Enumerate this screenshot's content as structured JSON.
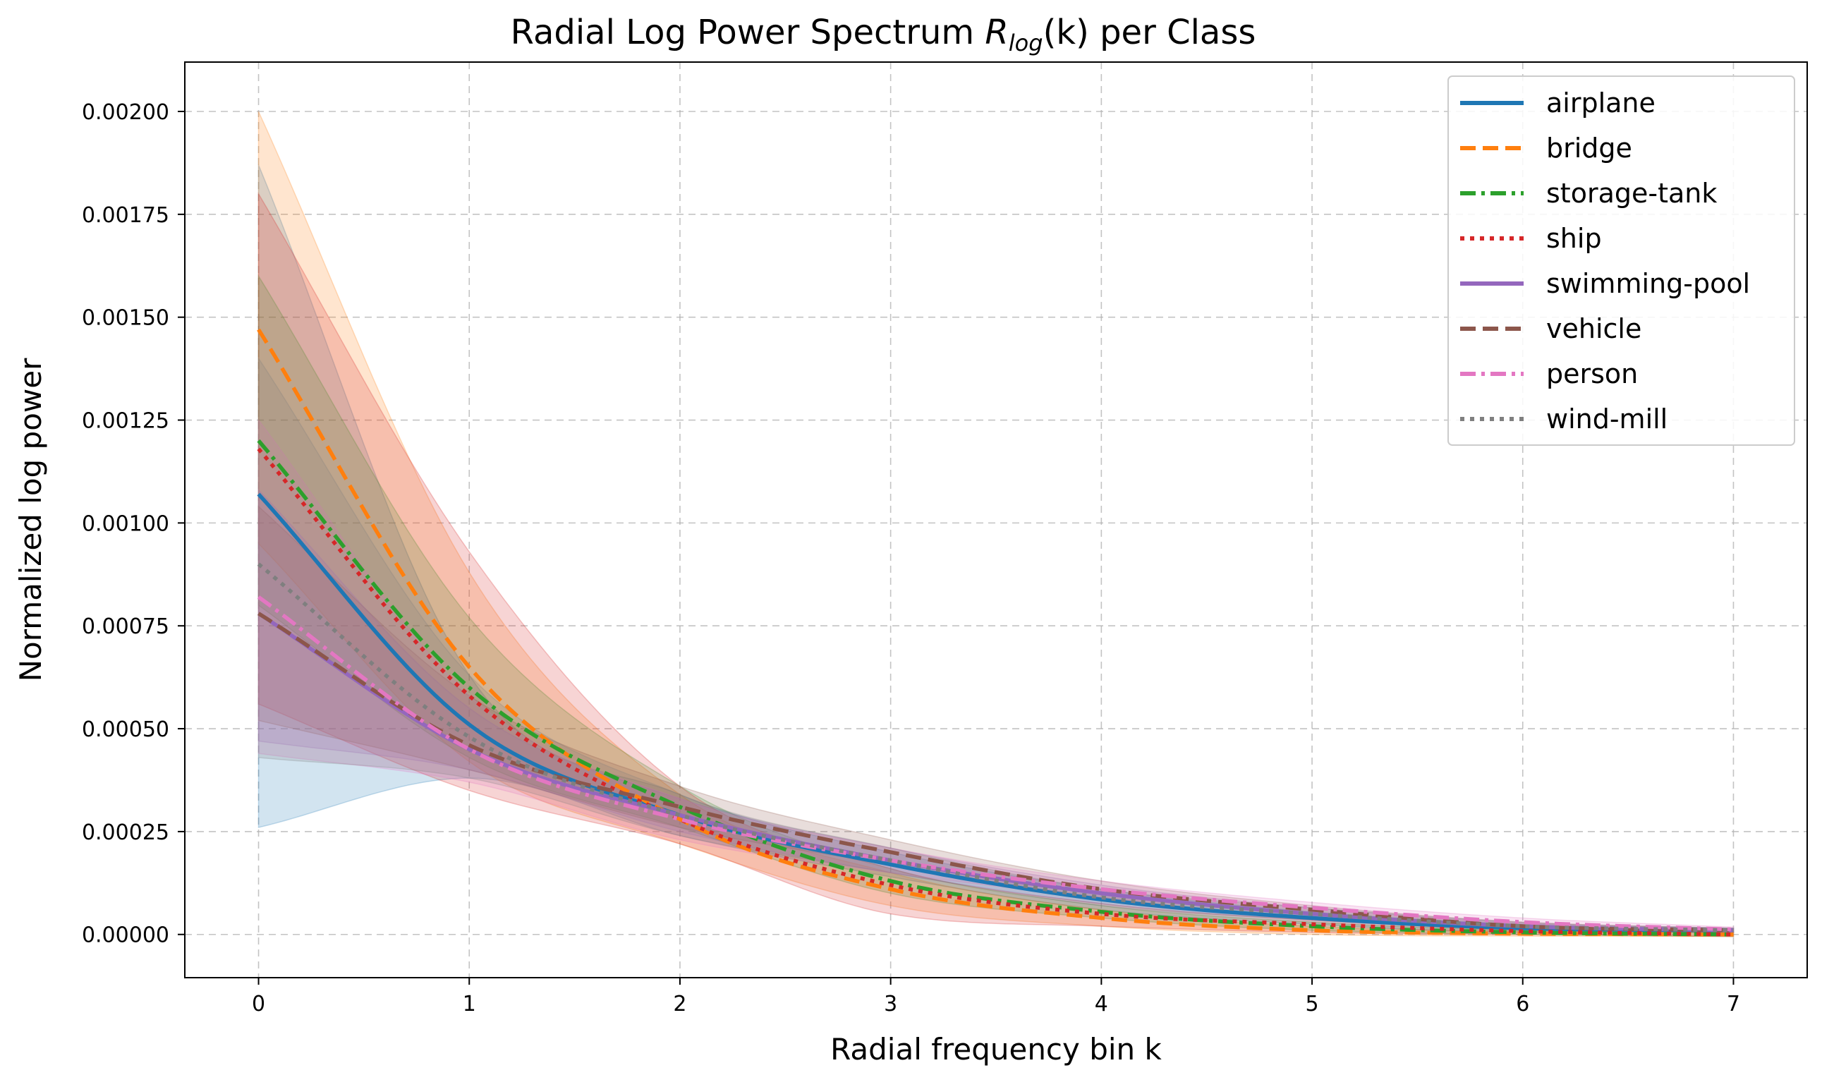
{
  "chart_data": {
    "type": "line",
    "title": "Radial Log Power Spectrum",
    "title_symbol": "R",
    "title_subscript": "log",
    "title_arg": "(k)",
    "title_suffix": " per Class",
    "xlabel": "Radial frequency bin k",
    "ylabel": "Normalized log power",
    "xlim": [
      -0.35,
      7.35
    ],
    "ylim": [
      -0.000105,
      0.00212
    ],
    "xticks": [
      0,
      1,
      2,
      3,
      4,
      5,
      6,
      7
    ],
    "xtick_labels": [
      "0",
      "1",
      "2",
      "3",
      "4",
      "5",
      "6",
      "7"
    ],
    "yticks": [
      0,
      0.00025,
      0.0005,
      0.00075,
      0.001,
      0.00125,
      0.0015,
      0.00175,
      0.002
    ],
    "ytick_labels": [
      "0.00000",
      "0.00025",
      "0.00050",
      "0.00075",
      "0.00100",
      "0.00125",
      "0.00150",
      "0.00175",
      "0.00200"
    ],
    "grid": true,
    "legend_position": "top-right",
    "x": [
      0,
      1,
      2,
      3,
      4,
      5,
      6,
      7
    ],
    "series": [
      {
        "name": "airplane",
        "color": "#1f77b4",
        "dash": "solid",
        "values": [
          0.00107,
          0.00051,
          0.00029,
          0.00017,
          8.5e-05,
          4e-05,
          1.5e-05,
          1e-05
        ],
        "upper": [
          0.00187,
          0.00063,
          0.00034,
          0.0002,
          0.00011,
          5.5e-05,
          2.5e-05,
          1.5e-05
        ],
        "lower": [
          0.00026,
          0.00038,
          0.00024,
          0.00014,
          6e-05,
          2.5e-05,
          5e-06,
          5e-06
        ]
      },
      {
        "name": "bridge",
        "color": "#ff7f0e",
        "dash": "dashed",
        "values": [
          0.00147,
          0.00065,
          0.00028,
          0.00011,
          4e-05,
          1e-05,
          2e-06,
          0.0
        ],
        "upper": [
          0.002,
          0.00088,
          0.00034,
          0.00015,
          6e-05,
          2e-05,
          8e-06,
          5e-06
        ],
        "lower": [
          0.00095,
          0.00042,
          0.00022,
          7e-05,
          2e-05,
          0.0,
          -4e-06,
          -5e-06
        ]
      },
      {
        "name": "storage-tank",
        "color": "#2ca02c",
        "dash": "dashdot",
        "values": [
          0.0012,
          0.0006,
          0.00031,
          0.00013,
          5.5e-05,
          2e-05,
          5e-06,
          0.0
        ],
        "upper": [
          0.0016,
          0.00077,
          0.00036,
          0.00016,
          7e-05,
          3e-05,
          1e-05,
          5e-06
        ],
        "lower": [
          0.0008,
          0.00043,
          0.00026,
          0.0001,
          4e-05,
          1e-05,
          0.0,
          -5e-06
        ]
      },
      {
        "name": "ship",
        "color": "#d62728",
        "dash": "dotted",
        "values": [
          0.00118,
          0.00058,
          0.00028,
          0.00012,
          5e-05,
          2.5e-05,
          8e-06,
          0.0
        ],
        "upper": [
          0.0018,
          0.00093,
          0.00036,
          0.00016,
          7.5e-05,
          3.5e-05,
          1.5e-05,
          5e-06
        ],
        "lower": [
          0.00056,
          0.00035,
          0.00022,
          5e-05,
          2e-05,
          5e-06,
          0.0,
          -5e-06
        ]
      },
      {
        "name": "swimming-pool",
        "color": "#9467bd",
        "dash": "solid",
        "values": [
          0.00078,
          0.00045,
          0.00029,
          0.00018,
          0.0001,
          5e-05,
          2e-05,
          1e-05
        ],
        "upper": [
          0.00108,
          0.00055,
          0.00033,
          0.00021,
          0.00012,
          6.5e-05,
          2.8e-05,
          1.5e-05
        ],
        "lower": [
          0.00047,
          0.0004,
          0.00025,
          0.00015,
          7.5e-05,
          3.5e-05,
          1.2e-05,
          5e-06
        ]
      },
      {
        "name": "vehicle",
        "color": "#8c564b",
        "dash": "dashed",
        "values": [
          0.00078,
          0.00046,
          0.00031,
          0.0002,
          0.00011,
          6e-05,
          2e-05,
          1e-05
        ],
        "upper": [
          0.00104,
          0.00058,
          0.00036,
          0.00023,
          0.00013,
          7e-05,
          3e-05,
          1.5e-05
        ],
        "lower": [
          0.00052,
          0.0004,
          0.00026,
          0.00017,
          9e-05,
          4e-05,
          1.5e-05,
          5e-06
        ]
      },
      {
        "name": "person",
        "color": "#e377c2",
        "dash": "dashdot",
        "values": [
          0.00082,
          0.00045,
          0.00028,
          0.00018,
          0.00011,
          6.5e-05,
          3e-05,
          1.2e-05
        ],
        "upper": [
          0.00125,
          0.00058,
          0.00033,
          0.00021,
          0.00013,
          7.8e-05,
          4e-05,
          1.8e-05
        ],
        "lower": [
          0.00044,
          0.00037,
          0.00023,
          0.00015,
          9e-05,
          5e-05,
          2e-05,
          5e-06
        ]
      },
      {
        "name": "wind-mill",
        "color": "#7f7f7f",
        "dash": "dotted",
        "values": [
          0.0009,
          0.00048,
          0.00029,
          0.00018,
          9e-05,
          5e-05,
          2e-05,
          1e-05
        ],
        "upper": [
          0.0014,
          0.00063,
          0.00034,
          0.00021,
          0.00011,
          6.5e-05,
          3e-05,
          1.5e-05
        ],
        "lower": [
          0.00043,
          0.00038,
          0.00024,
          0.00015,
          7e-05,
          3.5e-05,
          1e-05,
          5e-06
        ]
      }
    ]
  }
}
